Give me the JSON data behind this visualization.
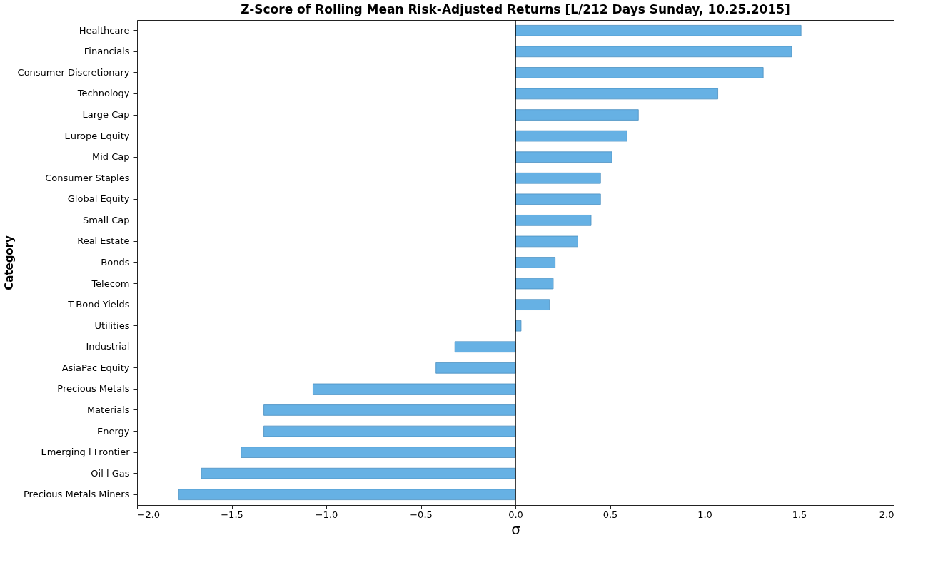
{
  "chart_data": {
    "type": "bar",
    "orientation": "horizontal",
    "title": "Z-Score of Rolling Mean Risk-Adjusted Returns [L/212 Days Sunday, 10.25.2015]",
    "xlabel": "σ",
    "ylabel": "Category",
    "categories": [
      "Healthcare",
      "Financials",
      "Consumer Discretionary",
      "Technology",
      "Large Cap",
      "Europe Equity",
      "Mid Cap",
      "Consumer Staples",
      "Global Equity",
      "Small Cap",
      "Real Estate",
      "Bonds",
      "Telecom",
      "T-Bond Yields",
      "Utilities",
      "Industrial",
      "AsiaPac Equity",
      "Precious Metals",
      "Materials",
      "Energy",
      "Emerging l Frontier",
      "Oil l Gas",
      "Precious Metals Miners"
    ],
    "values": [
      1.51,
      1.46,
      1.31,
      1.07,
      0.65,
      0.59,
      0.51,
      0.45,
      0.45,
      0.4,
      0.33,
      0.21,
      0.2,
      0.18,
      0.03,
      -0.32,
      -0.42,
      -1.07,
      -1.33,
      -1.33,
      -1.45,
      -1.66,
      -1.78
    ],
    "color": "#66b1e4",
    "xlim": [
      -2,
      2
    ],
    "xticks": [
      {
        "value": -2,
        "label": "−2.0"
      },
      {
        "value": -1.5,
        "label": "−1.5"
      },
      {
        "value": -1,
        "label": "−1.0"
      },
      {
        "value": -0.5,
        "label": "−0.5"
      },
      {
        "value": 0,
        "label": "0.0"
      },
      {
        "value": 0.5,
        "label": "0.5"
      },
      {
        "value": 1,
        "label": "1.0"
      },
      {
        "value": 1.5,
        "label": "1.5"
      },
      {
        "value": 2,
        "label": "2.0"
      }
    ],
    "ref_lines": [
      {
        "axis": "x",
        "value": 0,
        "color": "#000000"
      }
    ],
    "grid": false
  }
}
